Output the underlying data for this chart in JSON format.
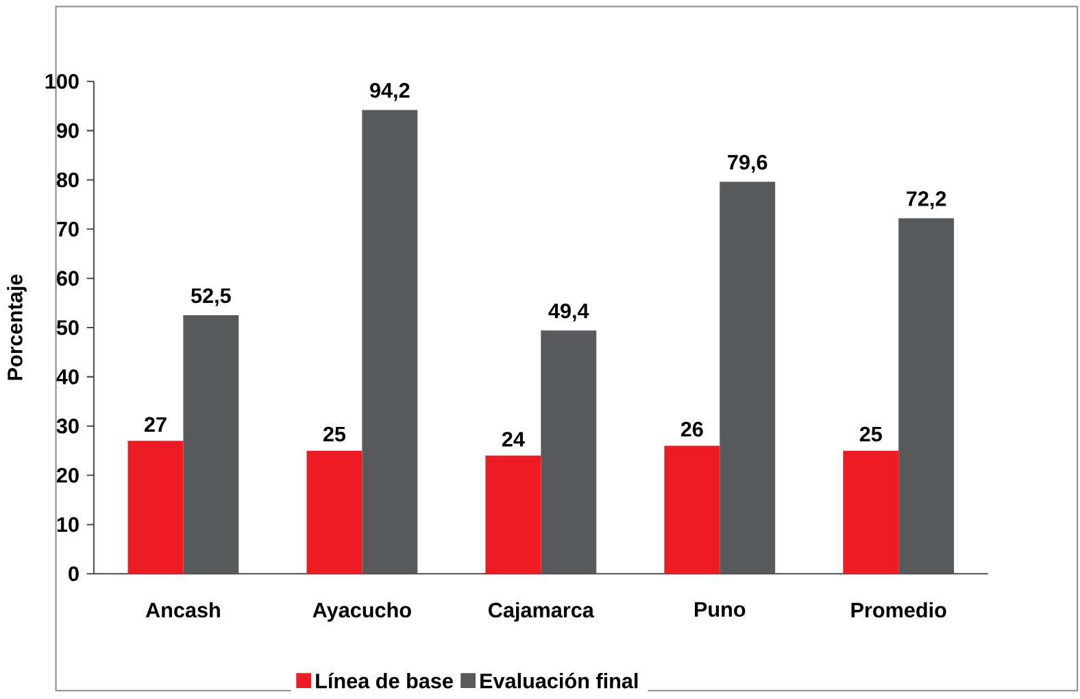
{
  "chart_data": {
    "type": "bar",
    "ylabel": "Porcentaje",
    "categories": [
      "Ancash",
      "Ayacucho",
      "Cajamarca",
      "Puno",
      "Promedio"
    ],
    "series": [
      {
        "name": "Línea de base",
        "color": "#ed1c24",
        "values": [
          27,
          25,
          24,
          26,
          25
        ],
        "value_labels": [
          "27",
          "25",
          "24",
          "26",
          "25"
        ]
      },
      {
        "name": "Evaluación final",
        "color": "#58595b",
        "values": [
          52.5,
          94.2,
          49.4,
          79.6,
          72.2
        ],
        "value_labels": [
          "52,5",
          "94,2",
          "49,4",
          "79,6",
          "72,2"
        ]
      }
    ],
    "ylim": [
      0,
      100
    ],
    "yticks": [
      0,
      10,
      20,
      30,
      40,
      50,
      60,
      70,
      80,
      90,
      100
    ],
    "grid": false,
    "legend": "bottom"
  }
}
